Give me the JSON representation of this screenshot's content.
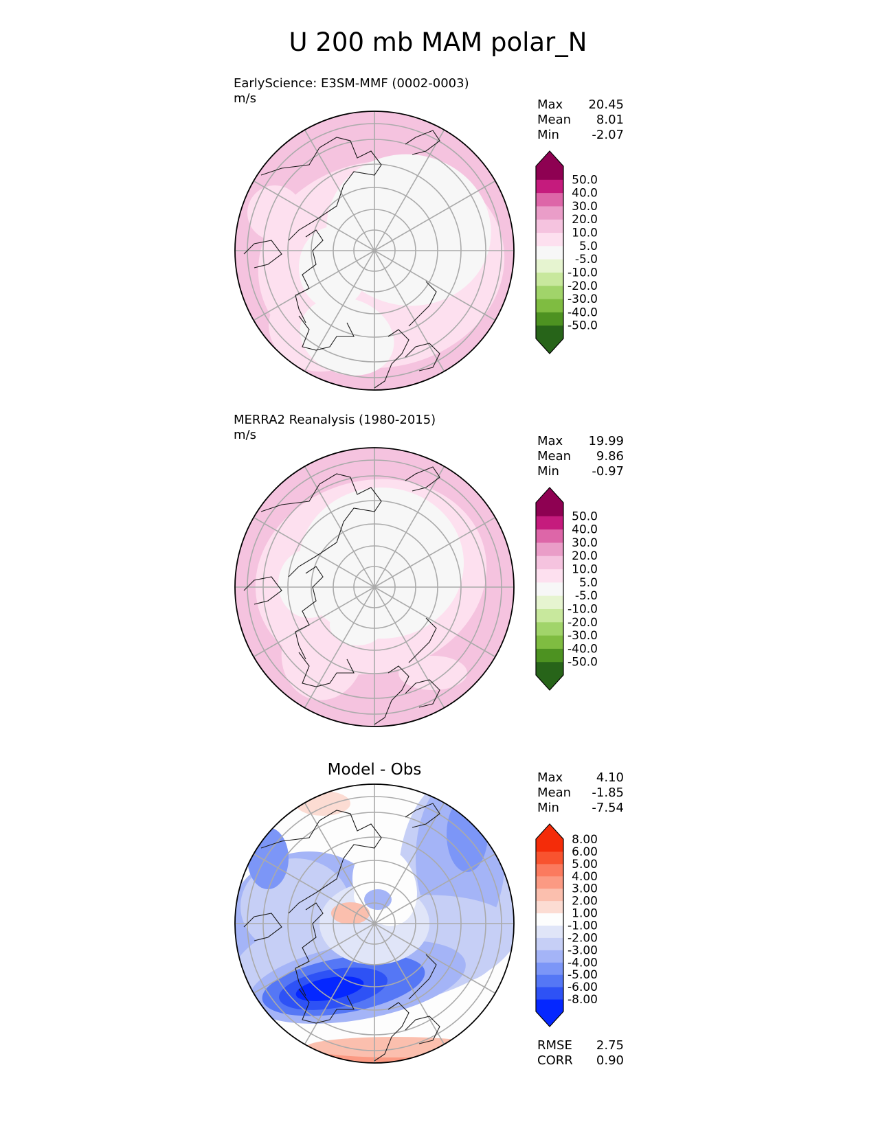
{
  "figure": {
    "title": "U 200 mb MAM polar_N"
  },
  "colors": {
    "cmap_main": [
      "#276419",
      "#4d9221",
      "#7fbc41",
      "#a1d46a",
      "#c8e89d",
      "#e6f4d0",
      "#f7f7f7",
      "#fde0ef",
      "#f5c3df",
      "#ea9dc8",
      "#dd66a8",
      "#c51b7d",
      "#8e0152"
    ],
    "cmap_diff": [
      "#0527ff",
      "#2e52f5",
      "#5577f5",
      "#7c96f7",
      "#a4b4f7",
      "#c6cff6",
      "#e0e5f8",
      "#fdfdfd",
      "#fcdcd3",
      "#fbbfae",
      "#fb9a83",
      "#fb7a5e",
      "#f8532f",
      "#f42c09"
    ],
    "grid": "#aaaaaa",
    "coast": "#1a1a1a"
  },
  "panels": [
    {
      "name": "test",
      "title": "EarlyScience: E3SM-MMF (0002-0003)",
      "units": "m/s",
      "stats": [
        {
          "label": "Max",
          "value": "20.45"
        },
        {
          "label": "Mean",
          "value": "8.01"
        },
        {
          "label": "Min",
          "value": "-2.07"
        }
      ],
      "colorbar_ticks": [
        "-50.0",
        "-40.0",
        "-30.0",
        "-20.0",
        "-10.0",
        "-5.0",
        "5.0",
        "10.0",
        "20.0",
        "30.0",
        "40.0",
        "50.0"
      ]
    },
    {
      "name": "reference",
      "title": "MERRA2 Reanalysis (1980-2015)",
      "units": "m/s",
      "stats": [
        {
          "label": "Max",
          "value": "19.99"
        },
        {
          "label": "Mean",
          "value": "9.86"
        },
        {
          "label": "Min",
          "value": "-0.97"
        }
      ],
      "colorbar_ticks": [
        "-50.0",
        "-40.0",
        "-30.0",
        "-20.0",
        "-10.0",
        "-5.0",
        "5.0",
        "10.0",
        "20.0",
        "30.0",
        "40.0",
        "50.0"
      ]
    },
    {
      "name": "difference",
      "title": "Model - Obs",
      "stats": [
        {
          "label": "Max",
          "value": "4.10"
        },
        {
          "label": "Mean",
          "value": "-1.85"
        },
        {
          "label": "Min",
          "value": "-7.54"
        }
      ],
      "colorbar_ticks": [
        "-8.00",
        "-6.00",
        "-5.00",
        "-4.00",
        "-3.00",
        "-2.00",
        "-1.00",
        "1.00",
        "2.00",
        "3.00",
        "4.00",
        "5.00",
        "6.00",
        "8.00"
      ],
      "metrics": [
        {
          "label": "RMSE",
          "value": "2.75"
        },
        {
          "label": "CORR",
          "value": "0.90"
        }
      ]
    }
  ],
  "chart_data": {
    "type": "heatmap",
    "projection": "north polar stereographic",
    "title": "U 200 mb MAM polar_N",
    "variable": "U",
    "level": "200 mb",
    "season": "MAM",
    "panels": [
      {
        "title": "EarlyScience: E3SM-MMF (0002-0003)",
        "units": "m/s",
        "max": 20.45,
        "mean": 8.01,
        "min": -2.07,
        "levels": [
          -50,
          -40,
          -30,
          -20,
          -10,
          -5,
          5,
          10,
          20,
          30,
          40,
          50
        ]
      },
      {
        "title": "MERRA2 Reanalysis (1980-2015)",
        "units": "m/s",
        "max": 19.99,
        "mean": 9.86,
        "min": -0.97,
        "levels": [
          -50,
          -40,
          -30,
          -20,
          -10,
          -5,
          5,
          10,
          20,
          30,
          40,
          50
        ]
      },
      {
        "title": "Model - Obs",
        "max": 4.1,
        "mean": -1.85,
        "min": -7.54,
        "rmse": 2.75,
        "corr": 0.9,
        "levels": [
          -8,
          -6,
          -5,
          -4,
          -3,
          -2,
          -1,
          1,
          2,
          3,
          4,
          5,
          6,
          8
        ]
      }
    ]
  }
}
